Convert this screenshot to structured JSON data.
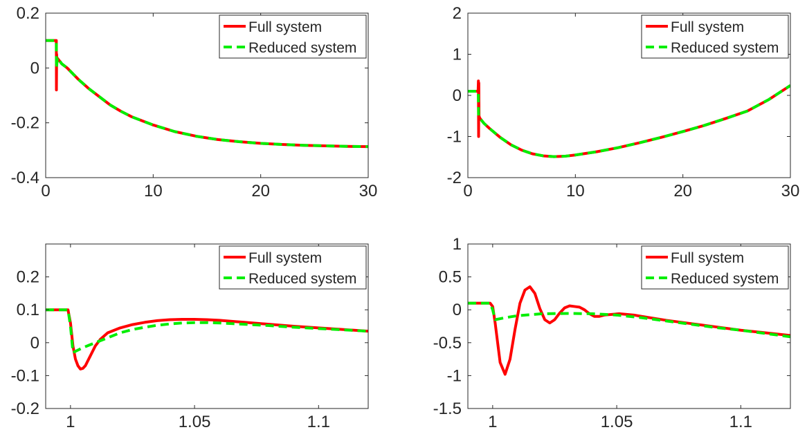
{
  "colors": {
    "full": "#ff0000",
    "reduced": "#00ee00",
    "axes": "#262626",
    "background": "#ffffff"
  },
  "legend": {
    "full": "Full system",
    "reduced": "Reduced system",
    "placement": "top-right"
  },
  "chart_data": [
    {
      "type": "line",
      "xlim": [
        0,
        30
      ],
      "ylim": [
        -0.4,
        0.2
      ],
      "xticks": [
        0,
        10,
        20,
        30
      ],
      "xtick_labels": [
        "0",
        "10",
        "20",
        "30"
      ],
      "yticks": [
        -0.4,
        -0.2,
        0,
        0.2
      ],
      "ytick_labels": [
        "-0.4",
        "-0.2",
        "0",
        "0.2"
      ],
      "series": [
        {
          "name": "Full system",
          "x": [
            0,
            0.97,
            0.99,
            1.0,
            1.02,
            1.05,
            1.1,
            1.5,
            2,
            3,
            4,
            5,
            6,
            7,
            8,
            10,
            12,
            14,
            16,
            18,
            20,
            22,
            24,
            26,
            28,
            30
          ],
          "y": [
            0.1,
            0.1,
            0.1,
            -0.08,
            0.05,
            0.03,
            0.035,
            0.015,
            0.0,
            -0.04,
            -0.075,
            -0.105,
            -0.135,
            -0.158,
            -0.178,
            -0.208,
            -0.232,
            -0.249,
            -0.261,
            -0.269,
            -0.275,
            -0.279,
            -0.282,
            -0.284,
            -0.286,
            -0.287
          ]
        },
        {
          "name": "Reduced system",
          "x": [
            0,
            0.97,
            0.99,
            1.0,
            1.1,
            1.5,
            2,
            3,
            4,
            5,
            6,
            7,
            8,
            10,
            12,
            14,
            16,
            18,
            20,
            22,
            24,
            26,
            28,
            30
          ],
          "y": [
            0.1,
            0.1,
            0.1,
            0.0,
            0.037,
            0.015,
            0.0,
            -0.04,
            -0.075,
            -0.105,
            -0.135,
            -0.158,
            -0.178,
            -0.208,
            -0.232,
            -0.249,
            -0.261,
            -0.269,
            -0.275,
            -0.279,
            -0.282,
            -0.284,
            -0.286,
            -0.287
          ]
        }
      ]
    },
    {
      "type": "line",
      "xlim": [
        0,
        30
      ],
      "ylim": [
        -2,
        2
      ],
      "xticks": [
        0,
        10,
        20,
        30
      ],
      "xtick_labels": [
        "0",
        "10",
        "20",
        "30"
      ],
      "yticks": [
        -2,
        -1,
        0,
        1,
        2
      ],
      "ytick_labels": [
        "-2",
        "-1",
        "0",
        "1",
        "2"
      ],
      "series": [
        {
          "name": "Full system",
          "x": [
            0,
            0.95,
            0.98,
            1.0,
            1.02,
            1.04,
            1.1,
            1.5,
            2,
            3,
            4,
            5,
            6,
            7,
            8,
            9,
            10,
            12,
            14,
            16,
            18,
            20,
            22,
            24,
            26,
            28,
            30
          ],
          "y": [
            0.1,
            0.1,
            0.35,
            -1.0,
            0.3,
            -0.5,
            -0.55,
            -0.68,
            -0.8,
            -1.02,
            -1.2,
            -1.33,
            -1.42,
            -1.47,
            -1.49,
            -1.48,
            -1.45,
            -1.37,
            -1.27,
            -1.15,
            -1.02,
            -0.88,
            -0.73,
            -0.56,
            -0.38,
            -0.1,
            0.24
          ]
        },
        {
          "name": "Reduced system",
          "x": [
            0,
            0.97,
            1.0,
            1.1,
            1.5,
            2,
            3,
            4,
            5,
            6,
            7,
            8,
            9,
            10,
            12,
            14,
            16,
            18,
            20,
            22,
            24,
            26,
            28,
            30
          ],
          "y": [
            0.1,
            0.1,
            -0.5,
            -0.55,
            -0.68,
            -0.8,
            -1.02,
            -1.2,
            -1.33,
            -1.42,
            -1.47,
            -1.49,
            -1.48,
            -1.45,
            -1.37,
            -1.27,
            -1.15,
            -1.02,
            -0.88,
            -0.73,
            -0.56,
            -0.38,
            -0.1,
            0.24
          ]
        }
      ]
    },
    {
      "type": "line",
      "xlim": [
        0.99,
        1.12
      ],
      "ylim": [
        -0.2,
        0.3
      ],
      "xticks": [
        1,
        1.05,
        1.1
      ],
      "xtick_labels": [
        "1",
        "1.05",
        "1.1"
      ],
      "yticks": [
        -0.2,
        -0.1,
        0,
        0.1,
        0.2
      ],
      "ytick_labels": [
        "-0.2",
        "-0.1",
        "0",
        "0.1",
        "0.2"
      ],
      "series": [
        {
          "name": "Full system",
          "x": [
            0.99,
            0.999,
            1.0,
            1.001,
            1.002,
            1.003,
            1.004,
            1.005,
            1.006,
            1.008,
            1.01,
            1.012,
            1.015,
            1.02,
            1.025,
            1.03,
            1.035,
            1.04,
            1.045,
            1.05,
            1.055,
            1.06,
            1.065,
            1.07,
            1.08,
            1.09,
            1.1,
            1.11,
            1.12
          ],
          "y": [
            0.1,
            0.1,
            0.06,
            -0.01,
            -0.05,
            -0.07,
            -0.08,
            -0.078,
            -0.07,
            -0.04,
            -0.01,
            0.01,
            0.03,
            0.045,
            0.055,
            0.062,
            0.067,
            0.07,
            0.071,
            0.071,
            0.07,
            0.068,
            0.065,
            0.062,
            0.056,
            0.05,
            0.045,
            0.04,
            0.035
          ]
        },
        {
          "name": "Reduced system",
          "x": [
            0.99,
            0.999,
            1.0,
            1.001,
            1.005,
            1.01,
            1.015,
            1.02,
            1.025,
            1.03,
            1.035,
            1.04,
            1.045,
            1.05,
            1.055,
            1.06,
            1.065,
            1.07,
            1.08,
            1.09,
            1.1,
            1.11,
            1.12
          ],
          "y": [
            0.1,
            0.1,
            0.05,
            -0.03,
            -0.015,
            0.0,
            0.015,
            0.03,
            0.04,
            0.047,
            0.053,
            0.057,
            0.06,
            0.061,
            0.061,
            0.06,
            0.058,
            0.056,
            0.052,
            0.047,
            0.043,
            0.039,
            0.035
          ]
        }
      ]
    },
    {
      "type": "line",
      "xlim": [
        0.99,
        1.12
      ],
      "ylim": [
        -1.5,
        1
      ],
      "xticks": [
        1,
        1.05,
        1.1
      ],
      "xtick_labels": [
        "1",
        "1.05",
        "1.1"
      ],
      "yticks": [
        -1.5,
        -1,
        -0.5,
        0,
        0.5,
        1
      ],
      "ytick_labels": [
        "-1.5",
        "-1",
        "-0.5",
        "0",
        "0.5",
        "1"
      ],
      "series": [
        {
          "name": "Full system",
          "x": [
            0.99,
            0.999,
            1.0,
            1.001,
            1.003,
            1.005,
            1.007,
            1.009,
            1.011,
            1.013,
            1.015,
            1.017,
            1.019,
            1.021,
            1.023,
            1.025,
            1.027,
            1.029,
            1.031,
            1.033,
            1.035,
            1.037,
            1.039,
            1.041,
            1.043,
            1.045,
            1.048,
            1.051,
            1.054,
            1.057,
            1.06,
            1.065,
            1.07,
            1.08,
            1.09,
            1.1,
            1.11,
            1.12
          ],
          "y": [
            0.1,
            0.1,
            0.05,
            -0.2,
            -0.8,
            -0.98,
            -0.75,
            -0.3,
            0.1,
            0.3,
            0.35,
            0.25,
            0.02,
            -0.15,
            -0.2,
            -0.15,
            -0.05,
            0.03,
            0.06,
            0.05,
            0.04,
            0.0,
            -0.06,
            -0.1,
            -0.1,
            -0.08,
            -0.07,
            -0.06,
            -0.07,
            -0.08,
            -0.1,
            -0.13,
            -0.16,
            -0.21,
            -0.26,
            -0.31,
            -0.35,
            -0.39
          ]
        },
        {
          "name": "Reduced system",
          "x": [
            0.99,
            0.999,
            1.0,
            1.001,
            1.005,
            1.01,
            1.02,
            1.03,
            1.04,
            1.05,
            1.06,
            1.07,
            1.08,
            1.09,
            1.1,
            1.11,
            1.12
          ],
          "y": [
            0.1,
            0.1,
            0.0,
            -0.15,
            -0.12,
            -0.09,
            -0.06,
            -0.055,
            -0.06,
            -0.08,
            -0.12,
            -0.17,
            -0.22,
            -0.27,
            -0.31,
            -0.36,
            -0.41
          ]
        }
      ]
    }
  ]
}
